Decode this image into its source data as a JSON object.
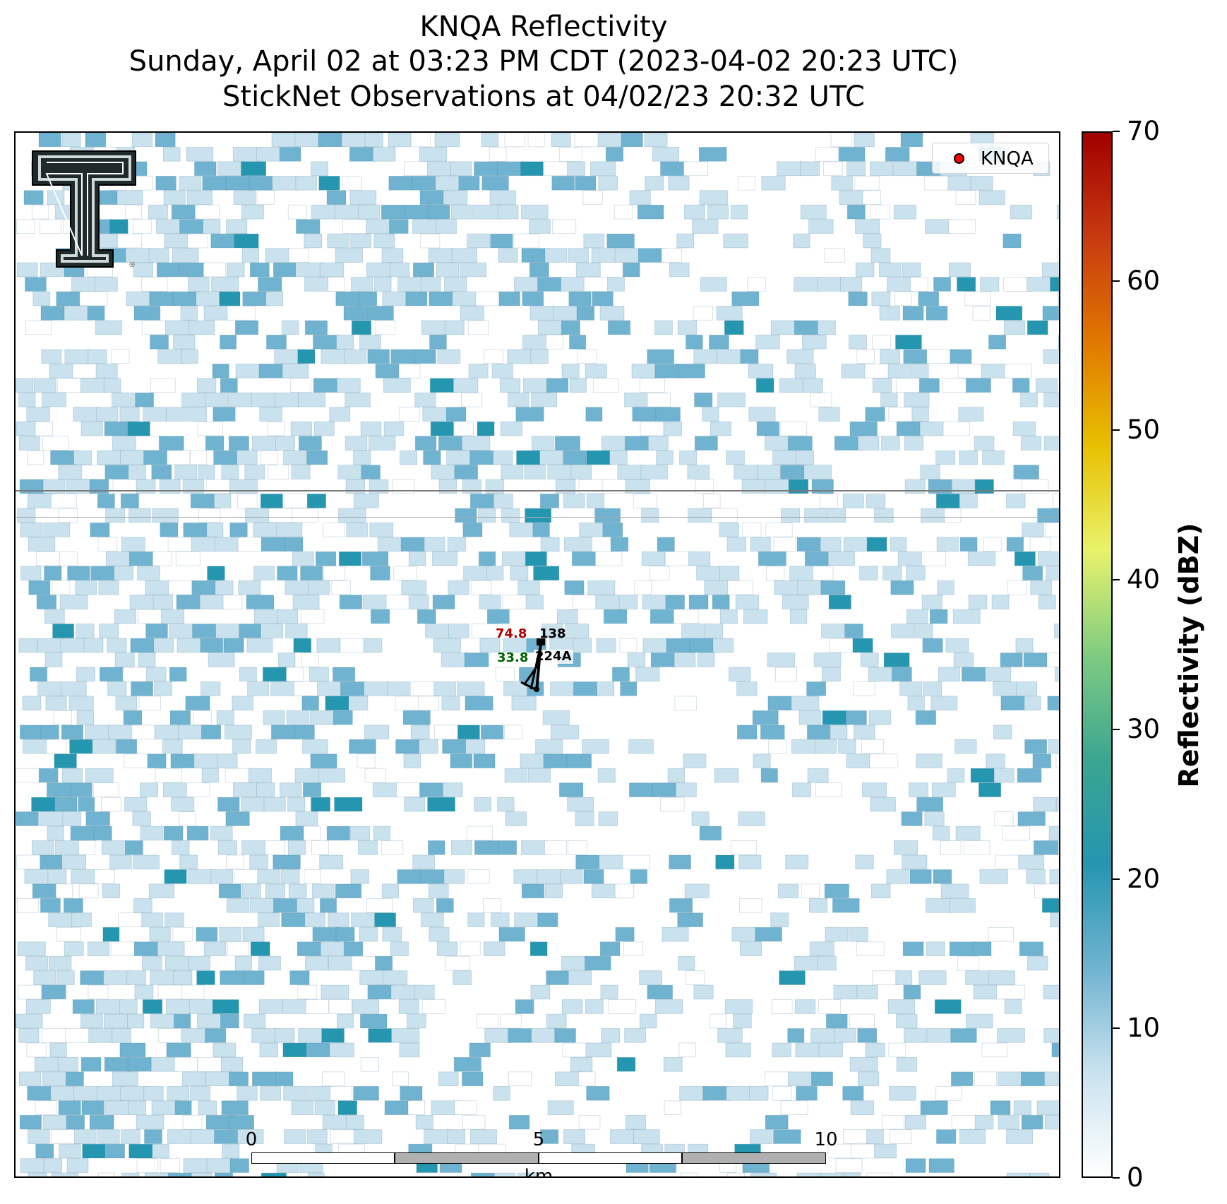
{
  "title": {
    "line1": "KNQA Reflectivity",
    "line2": "Sunday, April 02 at 03:23 PM CDT (2023-04-02 20:23 UTC)",
    "line3": "StickNet Observations at 04/02/23 20:32 UTC"
  },
  "legend": {
    "label": "KNQA",
    "marker_color": "#ff0000"
  },
  "colorbar": {
    "label": "Reflectivity (dBZ)",
    "min": 0,
    "max": 70,
    "ticks": [
      "0",
      "10",
      "20",
      "30",
      "40",
      "50",
      "60",
      "70"
    ],
    "colors": [
      "#ffffff",
      "#c9e2ee",
      "#6fb3d0",
      "#2596b0",
      "#3aa690",
      "#7fcc82",
      "#e8f26a",
      "#e8c000",
      "#e07800",
      "#c83a10",
      "#a00000"
    ]
  },
  "station": {
    "id": "224A",
    "temperature": "74.8",
    "dewpoint": "33.8",
    "pressure": "138",
    "temperature_color": "#b00000",
    "dewpoint_color": "#006400"
  },
  "scale_bar": {
    "labels": [
      "0",
      "5",
      "10"
    ],
    "unit": "km"
  },
  "chart_data": {
    "type": "heatmap",
    "title": "KNQA Reflectivity",
    "colorbar_label": "Reflectivity (dBZ)",
    "value_range": [
      0,
      70
    ],
    "typical_values_dbz": [
      2,
      5,
      8,
      10,
      12,
      15,
      20,
      24
    ]
  }
}
